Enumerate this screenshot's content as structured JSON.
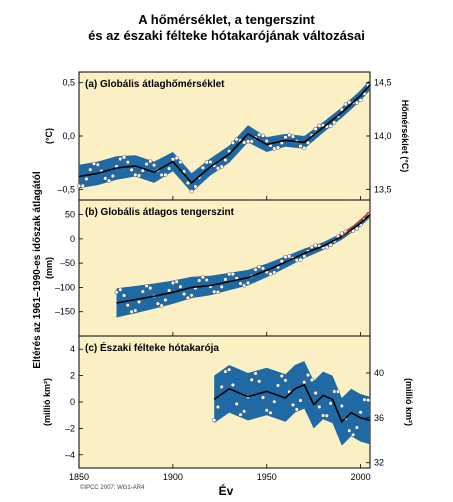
{
  "title_line1": "A hőmérséklet, a tengerszint",
  "title_line2": "és az északi félteke hótakarójának változásai",
  "left_axis_title": "Eltérés az 1961–1990-es időszak átlagától",
  "x_axis_label": "Év",
  "credit": "©IPCC 2007: WG1-AR4",
  "colors": {
    "panel_bg": "#fbefc4",
    "band": "#1f6aa5",
    "line": "#000000",
    "points": "#ffffff",
    "sea_level_trend": "#c0392b"
  },
  "chart_data": [
    {
      "type": "line",
      "panel_label": "(a) Globális átlaghőmérséklet",
      "ylabel_left": "(°C)",
      "ylabel_right": "Hőmérséklet (°C)",
      "xlim": [
        1850,
        2005
      ],
      "ylim": [
        -0.6,
        0.6
      ],
      "yticks_left": [
        "0,5",
        "0,0",
        "–0,5"
      ],
      "yticks_left_values": [
        0.5,
        0.0,
        -0.5
      ],
      "yticks_right": [
        "14,5",
        "14,0",
        "13,5"
      ],
      "yticks_right_values": [
        0.5,
        0.0,
        -0.5
      ],
      "x": [
        1850,
        1860,
        1870,
        1880,
        1890,
        1900,
        1910,
        1920,
        1930,
        1940,
        1950,
        1960,
        1970,
        1980,
        1990,
        2000,
        2005
      ],
      "values": [
        -0.38,
        -0.35,
        -0.3,
        -0.28,
        -0.34,
        -0.24,
        -0.44,
        -0.29,
        -0.17,
        0.02,
        -0.08,
        -0.04,
        -0.06,
        0.08,
        0.22,
        0.38,
        0.48
      ],
      "band_halfwidth": [
        0.11,
        0.11,
        0.11,
        0.1,
        0.1,
        0.09,
        0.09,
        0.08,
        0.08,
        0.08,
        0.07,
        0.06,
        0.06,
        0.05,
        0.05,
        0.05,
        0.05
      ]
    },
    {
      "type": "line",
      "panel_label": "(b) Globális átlagos tengerszint",
      "ylabel_left": "(mm)",
      "xlim": [
        1850,
        2005
      ],
      "ylim": [
        -200,
        80
      ],
      "yticks_left": [
        "50",
        "0",
        "–50",
        "–100",
        "–150"
      ],
      "yticks_left_values": [
        50,
        0,
        -50,
        -100,
        -150
      ],
      "x": [
        1870,
        1880,
        1890,
        1900,
        1910,
        1920,
        1930,
        1940,
        1950,
        1960,
        1970,
        1980,
        1990,
        2000,
        2005
      ],
      "values": [
        -132,
        -125,
        -118,
        -110,
        -100,
        -96,
        -88,
        -80,
        -65,
        -48,
        -30,
        -15,
        5,
        32,
        50
      ],
      "band_halfwidth": [
        30,
        28,
        26,
        24,
        22,
        20,
        18,
        16,
        14,
        12,
        10,
        8,
        7,
        6,
        6
      ]
    },
    {
      "type": "line",
      "panel_label": "(c) Északi félteke hótakarója",
      "ylabel_left": "(millió km²)",
      "ylabel_right": "(millió km²)",
      "xlim": [
        1850,
        2005
      ],
      "ylim": [
        -5,
        5
      ],
      "yticks_left": [
        "4",
        "2",
        "0",
        "–2",
        "–4"
      ],
      "yticks_left_values": [
        4,
        2,
        0,
        -2,
        -4
      ],
      "yticks_right": [
        "40",
        "36",
        "32"
      ],
      "yticks_right_values": [
        2.2,
        -1.2,
        -4.6
      ],
      "x": [
        1922,
        1930,
        1940,
        1950,
        1960,
        1965,
        1970,
        1975,
        1980,
        1985,
        1990,
        1995,
        2000,
        2005
      ],
      "values": [
        0.2,
        1.0,
        0.4,
        0.8,
        0.3,
        1.0,
        1.3,
        -0.2,
        0.5,
        0.2,
        -1.5,
        -0.8,
        -1.2,
        -1.4
      ],
      "band_halfwidth": [
        1.8,
        1.8,
        1.8,
        1.8,
        1.8,
        1.8,
        1.8,
        1.8,
        1.8,
        1.8,
        1.8,
        1.8,
        1.8,
        1.8
      ]
    }
  ],
  "xticks": [
    "1850",
    "1900",
    "1950",
    "2000"
  ],
  "xtick_values": [
    1850,
    1900,
    1950,
    2000
  ]
}
